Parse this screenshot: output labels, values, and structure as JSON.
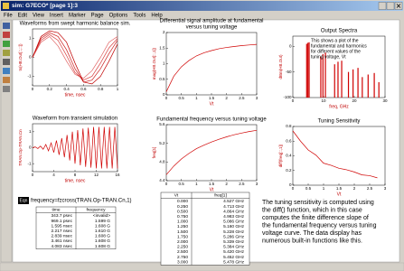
{
  "window": {
    "title": "sim: G7ECO* [page 1]:3",
    "menu": [
      "File",
      "Edit",
      "View",
      "Insert",
      "Marker",
      "Page",
      "Options",
      "Tools",
      "Help"
    ]
  },
  "charts": [
    {
      "type": "line",
      "title": [
        "Waveforms from swept harmonic balance sim."
      ],
      "xlabel": "time, nsec",
      "ylabel": "ts(HB.Out[::,::])",
      "x": [
        0,
        0.1,
        0.2,
        0.3,
        0.4,
        0.5,
        0.6,
        0.7,
        0.8,
        0.9,
        1
      ],
      "series": [
        {
          "color": "#e06060",
          "values": [
            0,
            0.8,
            1.1,
            0.6,
            -0.2,
            -0.9,
            -1.1,
            -0.7,
            0,
            0.8,
            1.1
          ]
        },
        {
          "color": "#d84040",
          "values": [
            0,
            0.9,
            1.2,
            0.9,
            0.1,
            -0.8,
            -1.2,
            -1.0,
            -0.3,
            0.5,
            1.0
          ]
        },
        {
          "color": "#cc2020",
          "values": [
            0,
            1.0,
            1.3,
            1.1,
            0.4,
            -0.6,
            -1.3,
            -1.2,
            -0.6,
            0.2,
            0.9
          ]
        },
        {
          "color": "#c00000",
          "values": [
            0,
            1.1,
            1.4,
            1.3,
            0.8,
            -0.3,
            -1.3,
            -1.4,
            -1.0,
            -0.2,
            0.7
          ]
        }
      ],
      "xlim": [
        0,
        1
      ],
      "xticks": [
        0,
        0.2,
        0.4,
        0.6,
        0.8,
        1
      ],
      "ylim": [
        -1.5,
        1.5
      ],
      "yticks": [
        -1,
        0,
        1
      ]
    },
    {
      "type": "line",
      "title": [
        "Differential signal amplitude at fundamental",
        "versus tuning voltage"
      ],
      "xlabel": "Vt",
      "ylabel": "mag(HB.Out[::,1])",
      "x": [
        0,
        0.25,
        0.5,
        0.75,
        1,
        1.25,
        1.5,
        1.75,
        2,
        2.25,
        2.5,
        2.75,
        3
      ],
      "series": [
        {
          "color": "#d00000",
          "values": [
            0.1,
            0.6,
            0.9,
            1.1,
            1.25,
            1.35,
            1.42,
            1.48,
            1.52,
            1.55,
            1.58,
            1.6,
            1.62
          ]
        }
      ],
      "xlim": [
        0,
        3
      ],
      "xticks": [
        0,
        0.5,
        1,
        1.5,
        2,
        2.5,
        3
      ],
      "ylim": [
        0,
        2
      ],
      "yticks": [
        0,
        0.5,
        1,
        1.5,
        2
      ]
    },
    {
      "type": "bar",
      "title": [
        "Output Spectra"
      ],
      "xlabel": "freq, GHz",
      "ylabel": "dBm(HB.Out)",
      "annotation": [
        "This shows a plot of the",
        "fundamental and harmonics",
        "for different values of the",
        "tuning voltage, Vt"
      ],
      "x": [
        4.5,
        4.9,
        5.3,
        9.1,
        9.8,
        10.6,
        13.6,
        14.7,
        15.9,
        18.1,
        19.6,
        21.2,
        22.6,
        24.5,
        26.5,
        28
      ],
      "values": [
        5,
        7,
        8,
        -20,
        -15,
        -12,
        -35,
        -30,
        -28,
        -50,
        -45,
        -42,
        -60,
        -55,
        -52,
        -70
      ],
      "color": "#d00000",
      "xlim": [
        0,
        30
      ],
      "xticks": [
        0,
        10,
        20,
        30
      ],
      "ylim": [
        -100,
        20
      ],
      "yticks": [
        -100,
        -50,
        0
      ]
    },
    {
      "type": "line",
      "title": [
        "Waveform from transient simulation"
      ],
      "xlabel": "time, nsec",
      "ylabel": "TRAN.Op-TRAN.Cn",
      "x": [
        0,
        0.5,
        1,
        1.5,
        2,
        2.5,
        3,
        3.5,
        4,
        4.5,
        5,
        5.5,
        6,
        6.5,
        7,
        7.5,
        8,
        8.5,
        9,
        9.5,
        10,
        10.5,
        11,
        11.5,
        12,
        12.5,
        13,
        13.5,
        14,
        14.5,
        15,
        15.5,
        16
      ],
      "series": [
        {
          "color": "#d00000",
          "values": [
            0,
            0.05,
            -0.05,
            0.1,
            -0.1,
            0.2,
            -0.2,
            0.3,
            -0.3,
            0.45,
            -0.45,
            0.6,
            -0.6,
            0.8,
            -0.8,
            1.0,
            -1.0,
            1.1,
            -1.1,
            1.2,
            -1.2,
            1.25,
            -1.25,
            1.3,
            -1.3,
            1.3,
            -1.3,
            1.3,
            -1.3,
            1.3,
            -1.3,
            1.3,
            -1.3
          ]
        }
      ],
      "xlim": [
        0,
        16
      ],
      "xticks": [
        0,
        4,
        8,
        12,
        16
      ],
      "ylim": [
        -1.5,
        1.5
      ],
      "yticks": [
        -1,
        0,
        1
      ]
    },
    {
      "type": "line",
      "title": [
        "Fundamental frequency versus tuning voltage"
      ],
      "xlabel": "Vt",
      "ylabel": "freq[1]",
      "x": [
        0,
        0.25,
        0.5,
        0.75,
        1,
        1.25,
        1.5,
        1.75,
        2,
        2.25,
        2.5,
        2.75,
        3
      ],
      "series": [
        {
          "color": "#d00000",
          "values": [
            4.527,
            4.713,
            4.864,
            4.983,
            5.086,
            5.16,
            5.228,
            5.286,
            5.339,
            5.384,
            5.42,
            5.452,
            5.478
          ]
        }
      ],
      "xlim": [
        0,
        3
      ],
      "xticks": [
        0,
        0.5,
        1,
        1.5,
        2,
        2.5,
        3
      ],
      "ylim": [
        4.4,
        5.6
      ],
      "yticks": [
        4.4,
        4.8,
        5.2,
        5.6
      ]
    },
    {
      "type": "line",
      "title": [
        "Tuning Sensitivity"
      ],
      "xlabel": "Vt",
      "ylabel": "diff(freq[::,1])",
      "x": [
        0,
        0.25,
        0.5,
        0.75,
        1,
        1.25,
        1.5,
        1.75,
        2,
        2.25,
        2.5,
        2.75
      ],
      "series": [
        {
          "color": "#d00000",
          "values": [
            0.74,
            0.6,
            0.48,
            0.41,
            0.3,
            0.27,
            0.23,
            0.21,
            0.18,
            0.14,
            0.13,
            0.1
          ]
        }
      ],
      "xlim": [
        0,
        3
      ],
      "xticks": [
        0,
        0.5,
        1,
        1.5,
        2,
        2.5,
        3
      ],
      "ylim": [
        0,
        0.8
      ],
      "yticks": [
        0,
        0.2,
        0.4,
        0.6,
        0.8
      ]
    }
  ],
  "equation": {
    "label": "Eqn",
    "text": "frequency=fzcross(TRAN.Op-TRAN.Cn,1)"
  },
  "tables": [
    {
      "columns": [
        "time",
        "frequency"
      ],
      "rows": [
        [
          "343.7 psec",
          "<invalid>"
        ],
        [
          "969.1 psec",
          "1.599 G"
        ],
        [
          "1.595 nsec",
          "1.608 G"
        ],
        [
          "2.217 nsec",
          "1.610 G"
        ],
        [
          "2.839 nsec",
          "1.608 G"
        ],
        [
          "3.461 nsec",
          "1.608 G"
        ],
        [
          "4.083 nsec",
          "1.608 G"
        ]
      ]
    },
    {
      "columns": [
        "Vt",
        "freq[1]"
      ],
      "rows": [
        [
          "0.000",
          "4.527 GHz"
        ],
        [
          "0.250",
          "4.713 GHz"
        ],
        [
          "0.500",
          "4.864 GHz"
        ],
        [
          "0.750",
          "4.983 GHz"
        ],
        [
          "1.000",
          "5.086 GHz"
        ],
        [
          "1.250",
          "5.160 GHz"
        ],
        [
          "1.500",
          "5.228 GHz"
        ],
        [
          "1.750",
          "5.286 GHz"
        ],
        [
          "2.000",
          "5.339 GHz"
        ],
        [
          "2.250",
          "5.384 GHz"
        ],
        [
          "2.500",
          "5.420 GHz"
        ],
        [
          "2.750",
          "5.452 GHz"
        ],
        [
          "3.000",
          "5.478 GHz"
        ]
      ]
    }
  ],
  "note": [
    "The tuning sensitivity is computed using",
    "the diff() function, which in this case",
    "computes the finite difference slope of",
    "the fundamental frequency versus tuning",
    "voltage curve.  The data display has",
    "numerous built-in functions like this."
  ]
}
